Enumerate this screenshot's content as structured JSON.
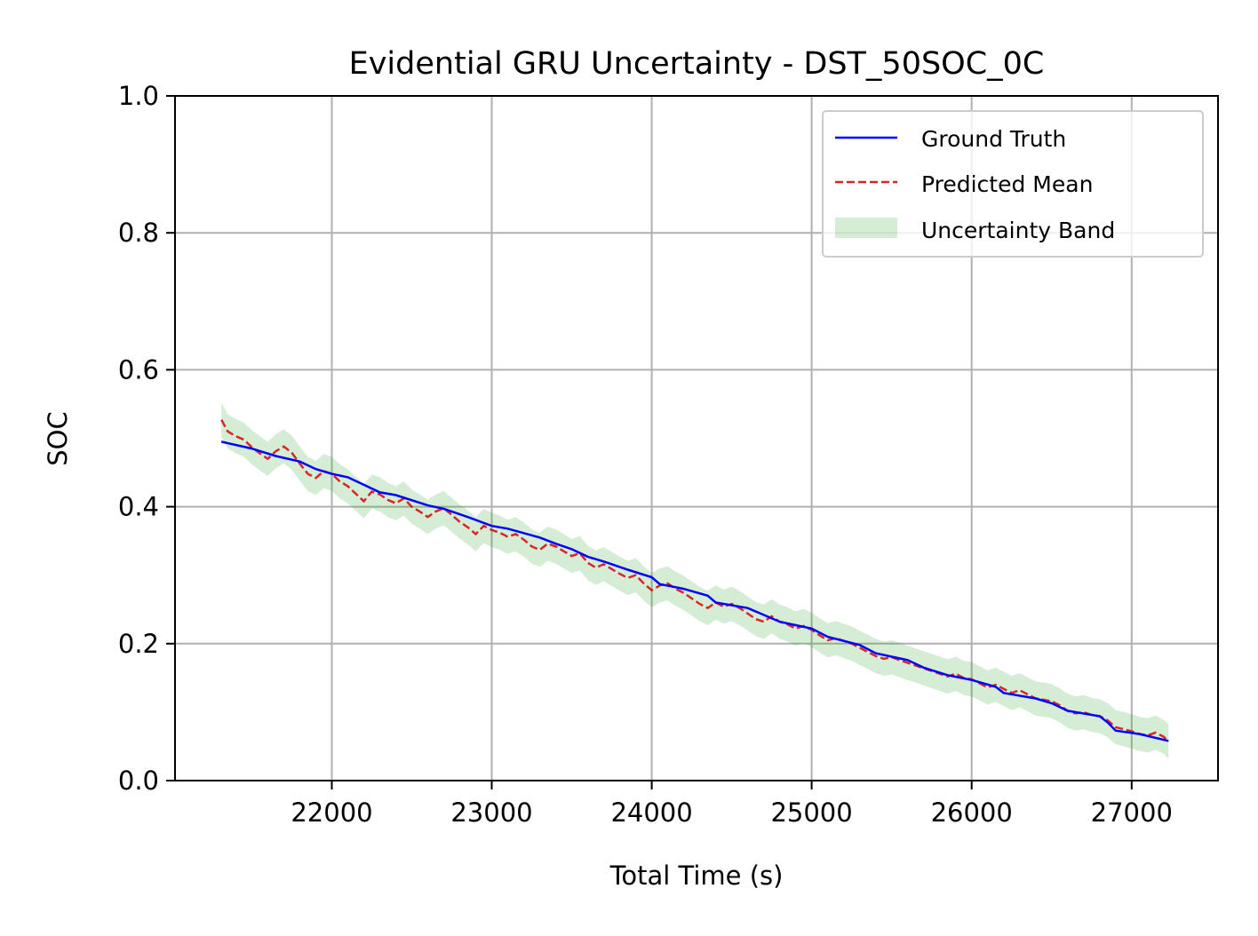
{
  "chart_data": {
    "type": "line",
    "title": "Evidential GRU Uncertainty - DST_50SOC_0C",
    "xlabel": "Total Time (s)",
    "ylabel": "SOC",
    "xlim": [
      21020,
      27540
    ],
    "ylim": [
      0.0,
      1.0
    ],
    "xticks": [
      22000,
      23000,
      24000,
      25000,
      26000,
      27000
    ],
    "yticks": [
      0.0,
      0.2,
      0.4,
      0.6,
      0.8,
      1.0
    ],
    "grid": true,
    "legend_position": "top-right",
    "series": [
      {
        "name": "Ground Truth",
        "style": "solid",
        "color": "#0000ff",
        "points": [
          [
            21310,
            0.495
          ],
          [
            21500,
            0.485
          ],
          [
            21650,
            0.474
          ],
          [
            21800,
            0.466
          ],
          [
            21900,
            0.455
          ],
          [
            22000,
            0.448
          ],
          [
            22100,
            0.443
          ],
          [
            22200,
            0.432
          ],
          [
            22300,
            0.421
          ],
          [
            22400,
            0.417
          ],
          [
            22600,
            0.402
          ],
          [
            22700,
            0.397
          ],
          [
            22850,
            0.385
          ],
          [
            23000,
            0.372
          ],
          [
            23100,
            0.368
          ],
          [
            23300,
            0.355
          ],
          [
            23400,
            0.346
          ],
          [
            23500,
            0.338
          ],
          [
            23600,
            0.327
          ],
          [
            23700,
            0.32
          ],
          [
            23850,
            0.308
          ],
          [
            24000,
            0.297
          ],
          [
            24050,
            0.287
          ],
          [
            24200,
            0.28
          ],
          [
            24350,
            0.27
          ],
          [
            24400,
            0.26
          ],
          [
            24600,
            0.252
          ],
          [
            24700,
            0.242
          ],
          [
            24800,
            0.232
          ],
          [
            25000,
            0.222
          ],
          [
            25100,
            0.21
          ],
          [
            25300,
            0.198
          ],
          [
            25400,
            0.186
          ],
          [
            25600,
            0.176
          ],
          [
            25700,
            0.165
          ],
          [
            25850,
            0.154
          ],
          [
            26000,
            0.147
          ],
          [
            26150,
            0.137
          ],
          [
            26200,
            0.128
          ],
          [
            26400,
            0.12
          ],
          [
            26500,
            0.113
          ],
          [
            26600,
            0.102
          ],
          [
            26800,
            0.094
          ],
          [
            26850,
            0.085
          ],
          [
            26900,
            0.073
          ],
          [
            27050,
            0.068
          ],
          [
            27230,
            0.058
          ]
        ]
      },
      {
        "name": "Predicted Mean",
        "style": "dashed",
        "color": "#d62728",
        "points": [
          [
            21310,
            0.527
          ],
          [
            21350,
            0.51
          ],
          [
            21400,
            0.503
          ],
          [
            21450,
            0.498
          ],
          [
            21500,
            0.487
          ],
          [
            21550,
            0.478
          ],
          [
            21600,
            0.47
          ],
          [
            21650,
            0.481
          ],
          [
            21700,
            0.488
          ],
          [
            21750,
            0.479
          ],
          [
            21800,
            0.463
          ],
          [
            21850,
            0.448
          ],
          [
            21900,
            0.442
          ],
          [
            21950,
            0.452
          ],
          [
            22000,
            0.448
          ],
          [
            22050,
            0.437
          ],
          [
            22100,
            0.43
          ],
          [
            22150,
            0.419
          ],
          [
            22200,
            0.408
          ],
          [
            22250,
            0.422
          ],
          [
            22300,
            0.418
          ],
          [
            22350,
            0.41
          ],
          [
            22400,
            0.405
          ],
          [
            22450,
            0.412
          ],
          [
            22500,
            0.4
          ],
          [
            22550,
            0.393
          ],
          [
            22600,
            0.385
          ],
          [
            22650,
            0.393
          ],
          [
            22700,
            0.398
          ],
          [
            22750,
            0.388
          ],
          [
            22800,
            0.378
          ],
          [
            22850,
            0.37
          ],
          [
            22900,
            0.36
          ],
          [
            22950,
            0.372
          ],
          [
            23000,
            0.366
          ],
          [
            23050,
            0.362
          ],
          [
            23100,
            0.356
          ],
          [
            23150,
            0.36
          ],
          [
            23200,
            0.352
          ],
          [
            23250,
            0.342
          ],
          [
            23300,
            0.337
          ],
          [
            23350,
            0.346
          ],
          [
            23400,
            0.342
          ],
          [
            23450,
            0.335
          ],
          [
            23500,
            0.328
          ],
          [
            23550,
            0.332
          ],
          [
            23600,
            0.318
          ],
          [
            23650,
            0.311
          ],
          [
            23700,
            0.316
          ],
          [
            23750,
            0.309
          ],
          [
            23800,
            0.302
          ],
          [
            23850,
            0.296
          ],
          [
            23900,
            0.3
          ],
          [
            23950,
            0.288
          ],
          [
            24000,
            0.278
          ],
          [
            24050,
            0.285
          ],
          [
            24100,
            0.288
          ],
          [
            24150,
            0.28
          ],
          [
            24200,
            0.274
          ],
          [
            24250,
            0.266
          ],
          [
            24300,
            0.258
          ],
          [
            24350,
            0.252
          ],
          [
            24400,
            0.26
          ],
          [
            24450,
            0.254
          ],
          [
            24500,
            0.258
          ],
          [
            24550,
            0.252
          ],
          [
            24600,
            0.244
          ],
          [
            24650,
            0.236
          ],
          [
            24700,
            0.232
          ],
          [
            24750,
            0.24
          ],
          [
            24800,
            0.232
          ],
          [
            24850,
            0.228
          ],
          [
            24900,
            0.222
          ],
          [
            24950,
            0.226
          ],
          [
            25000,
            0.22
          ],
          [
            25050,
            0.212
          ],
          [
            25100,
            0.205
          ],
          [
            25150,
            0.208
          ],
          [
            25200,
            0.204
          ],
          [
            25250,
            0.2
          ],
          [
            25300,
            0.194
          ],
          [
            25350,
            0.188
          ],
          [
            25400,
            0.182
          ],
          [
            25450,
            0.178
          ],
          [
            25500,
            0.18
          ],
          [
            25550,
            0.176
          ],
          [
            25600,
            0.172
          ],
          [
            25650,
            0.168
          ],
          [
            25700,
            0.164
          ],
          [
            25750,
            0.16
          ],
          [
            25800,
            0.156
          ],
          [
            25850,
            0.152
          ],
          [
            25900,
            0.156
          ],
          [
            25950,
            0.15
          ],
          [
            26000,
            0.148
          ],
          [
            26050,
            0.142
          ],
          [
            26100,
            0.136
          ],
          [
            26150,
            0.14
          ],
          [
            26200,
            0.134
          ],
          [
            26250,
            0.128
          ],
          [
            26300,
            0.132
          ],
          [
            26350,
            0.126
          ],
          [
            26400,
            0.12
          ],
          [
            26450,
            0.118
          ],
          [
            26500,
            0.116
          ],
          [
            26550,
            0.11
          ],
          [
            26600,
            0.102
          ],
          [
            26650,
            0.098
          ],
          [
            26700,
            0.1
          ],
          [
            26750,
            0.096
          ],
          [
            26800,
            0.094
          ],
          [
            26850,
            0.088
          ],
          [
            26900,
            0.078
          ],
          [
            26950,
            0.075
          ],
          [
            27000,
            0.072
          ],
          [
            27050,
            0.068
          ],
          [
            27100,
            0.066
          ],
          [
            27150,
            0.07
          ],
          [
            27200,
            0.064
          ],
          [
            27230,
            0.057
          ]
        ]
      },
      {
        "name": "Uncertainty Band",
        "style": "fill",
        "color": "#2ca02c",
        "opacity": 0.2,
        "note_half_width": 0.025
      }
    ]
  }
}
